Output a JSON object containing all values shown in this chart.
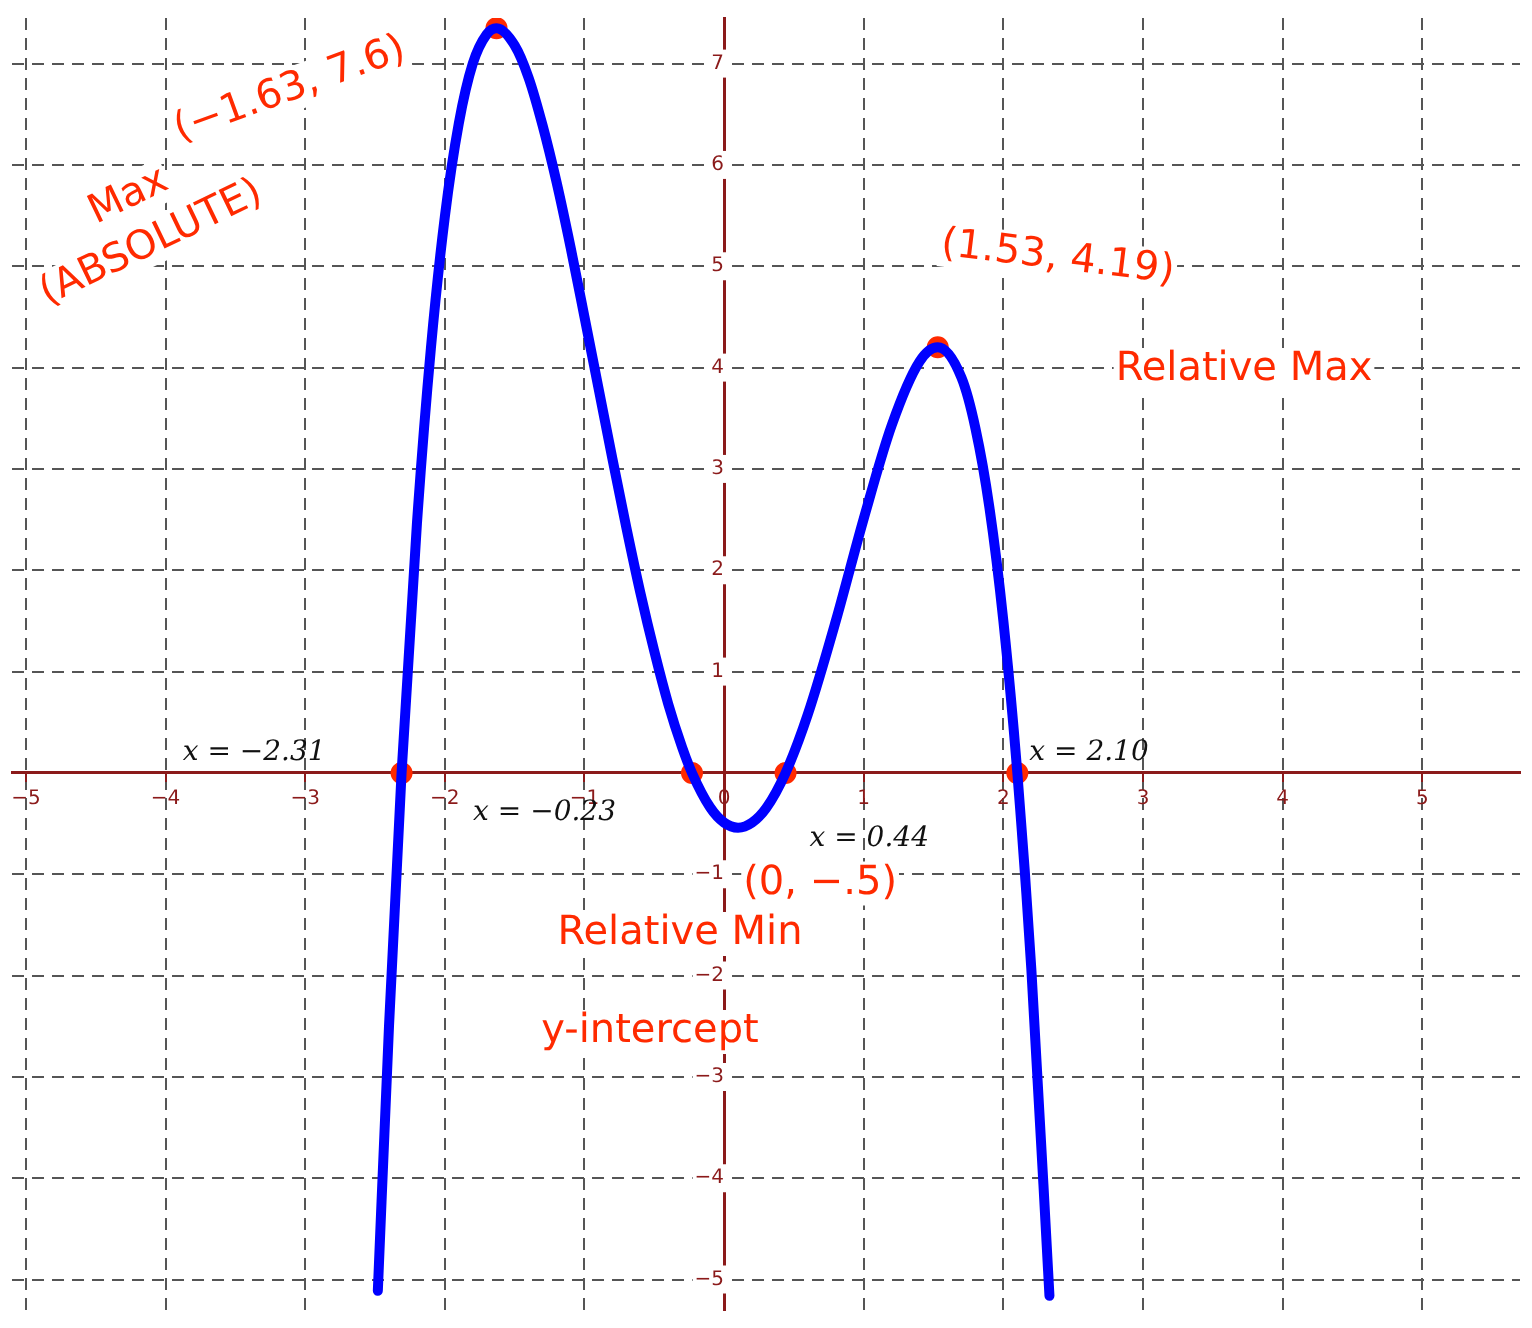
{
  "chart_data": {
    "type": "line",
    "xlim": [
      -5.1,
      5.7
    ],
    "ylim": [
      -5.3,
      7.45
    ],
    "xticks": [
      -5,
      -4,
      -3,
      -2,
      -1,
      0,
      1,
      2,
      3,
      4,
      5
    ],
    "yticks": [
      -5,
      -4,
      -3,
      -2,
      -1,
      1,
      2,
      3,
      4,
      5,
      6,
      7
    ],
    "grid": true,
    "legend": false,
    "series": [
      {
        "type": "line",
        "color": "#0000ff",
        "marker": "none",
        "x": [
          -2.48,
          -2.4,
          -2.31,
          -2.2,
          -2.1,
          -2.0,
          -1.9,
          -1.8,
          -1.7,
          -1.63,
          -1.5,
          -1.4,
          -1.3,
          -1.2,
          -1.1,
          -1.0,
          -0.9,
          -0.8,
          -0.7,
          -0.6,
          -0.5,
          -0.4,
          -0.3,
          -0.23,
          -0.1,
          0,
          0.1,
          0.2,
          0.3,
          0.44,
          0.6,
          0.8,
          1.0,
          1.2,
          1.4,
          1.53,
          1.7,
          1.8,
          1.9,
          2.0,
          2.1,
          2.2,
          2.33
        ],
        "values": [
          -5.11,
          -2.5,
          0,
          2.46,
          4.19,
          5.49,
          6.41,
          7.0,
          7.29,
          7.35,
          7.18,
          6.86,
          6.39,
          5.83,
          5.19,
          4.5,
          3.8,
          3.1,
          2.42,
          1.78,
          1.2,
          0.68,
          0.25,
          0,
          -0.34,
          -0.49,
          -0.54,
          -0.49,
          -0.35,
          0,
          0.58,
          1.5,
          2.51,
          3.43,
          4.06,
          4.2,
          3.9,
          3.4,
          2.62,
          1.5,
          0,
          -1.93,
          -5.16
        ]
      },
      {
        "type": "scatter",
        "color": "#ff2a00",
        "marker": "circle",
        "x": [
          -2.31,
          -1.63,
          -0.23,
          0.44,
          1.53,
          2.1
        ],
        "values": [
          0,
          7.35,
          0,
          0,
          4.2,
          0
        ]
      }
    ],
    "annotations": [
      {
        "text": "x = −2.31",
        "x": -2.31,
        "y": 0
      },
      {
        "text": "x = −0.23",
        "x": -0.23,
        "y": 0
      },
      {
        "text": "x = 0.44",
        "x": 0.44,
        "y": 0
      },
      {
        "text": "x = 2.10",
        "x": 2.1,
        "y": 0
      },
      "(−1.63, 7.6)",
      "Max (ABSOLUTE)",
      {
        "text": "(1.53, 4.19)",
        "x": 1.53,
        "y": 4.19
      },
      "Relative Max",
      {
        "text": "(0, −.5)",
        "x": 0,
        "y": -0.5
      },
      "Relative Min",
      "y-intercept"
    ]
  }
}
